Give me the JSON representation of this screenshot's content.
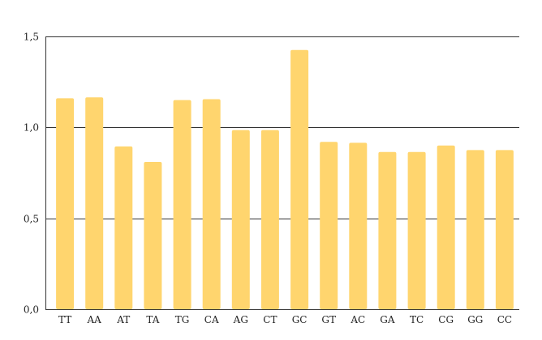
{
  "chart_data": {
    "type": "bar",
    "title": "",
    "xlabel": "",
    "ylabel": "",
    "categories": [
      "TT",
      "AA",
      "AT",
      "TA",
      "TG",
      "CA",
      "AG",
      "CT",
      "GC",
      "GT",
      "AC",
      "GA",
      "TC",
      "CG",
      "GG",
      "CC"
    ],
    "values": [
      1.16,
      1.165,
      0.895,
      0.81,
      1.15,
      1.155,
      0.985,
      0.985,
      1.425,
      0.92,
      0.915,
      0.865,
      0.865,
      0.9,
      0.875,
      0.875
    ],
    "ylim": [
      0,
      1.5
    ],
    "yticks": [
      0,
      0.5,
      1.0,
      1.5
    ],
    "ytick_labels": [
      "0,0",
      "0,5",
      "1,0",
      "1,5"
    ],
    "grid": "horizontal",
    "legend": "none",
    "bar_color": "#FFD56E",
    "grid_color": "#333333"
  }
}
